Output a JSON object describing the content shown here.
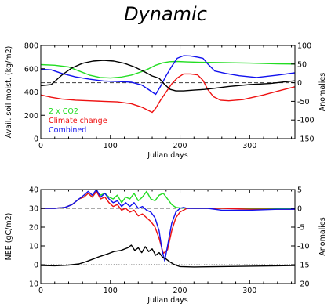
{
  "title": "Dynamic",
  "chart_data": [
    {
      "type": "line",
      "xlabel": "Julian days",
      "ylabel": "Avail. soil moist. (kg/m2)",
      "ylabel_right": "Anomalies",
      "xlim": [
        0,
        365
      ],
      "ylim": [
        0,
        800
      ],
      "ylim_right": [
        -150,
        100
      ],
      "xticks": [
        0,
        100,
        200,
        300
      ],
      "yticks": [
        0,
        200,
        400,
        600,
        800
      ],
      "yticks_right": [
        -150,
        -100,
        -50,
        0,
        50,
        100
      ],
      "reference_line": {
        "axis": "right",
        "value": 0,
        "style": "dashed",
        "color": "#555555"
      },
      "legend": [
        {
          "label": "2 x CO2",
          "color": "#22dd22"
        },
        {
          "label": "Climate change",
          "color": "#ee1111"
        },
        {
          "label": "Combined",
          "color": "#1111ee"
        }
      ],
      "series": [
        {
          "name": "2 x CO2",
          "axis": "left",
          "color": "#22dd22",
          "x": [
            0,
            20,
            40,
            55,
            70,
            85,
            100,
            115,
            130,
            145,
            155,
            165,
            175,
            185,
            195,
            210,
            230,
            260,
            300,
            340,
            365
          ],
          "y": [
            635,
            630,
            615,
            580,
            545,
            525,
            520,
            528,
            545,
            575,
            600,
            630,
            650,
            660,
            662,
            658,
            655,
            652,
            648,
            642,
            640
          ]
        },
        {
          "name": "Climate change",
          "axis": "left",
          "color": "#ee1111",
          "x": [
            0,
            15,
            30,
            50,
            70,
            90,
            110,
            130,
            145,
            155,
            160,
            165,
            172,
            180,
            188,
            196,
            205,
            215,
            225,
            233,
            240,
            248,
            258,
            270,
            290,
            320,
            345,
            365
          ],
          "y": [
            375,
            355,
            340,
            330,
            325,
            320,
            315,
            300,
            270,
            240,
            225,
            260,
            330,
            400,
            470,
            520,
            555,
            555,
            548,
            500,
            420,
            360,
            330,
            325,
            335,
            375,
            415,
            445
          ]
        },
        {
          "name": "Combined",
          "axis": "left",
          "color": "#1111ee",
          "x": [
            0,
            15,
            30,
            50,
            70,
            90,
            110,
            130,
            145,
            155,
            165,
            172,
            180,
            188,
            196,
            205,
            215,
            225,
            233,
            240,
            250,
            265,
            285,
            310,
            340,
            365
          ],
          "y": [
            595,
            590,
            560,
            530,
            510,
            495,
            490,
            485,
            460,
            420,
            380,
            450,
            540,
            620,
            690,
            712,
            710,
            700,
            690,
            640,
            580,
            560,
            540,
            525,
            545,
            565
          ]
        },
        {
          "name": "",
          "axis": "right",
          "color": "#000000",
          "x": [
            0,
            15,
            30,
            45,
            60,
            75,
            90,
            105,
            120,
            135,
            150,
            160,
            170,
            178,
            186,
            194,
            205,
            220,
            235,
            250,
            270,
            300,
            330,
            350,
            365
          ],
          "y": [
            -8,
            -5,
            20,
            40,
            52,
            58,
            60,
            58,
            52,
            42,
            28,
            18,
            12,
            -5,
            -18,
            -22,
            -22,
            -20,
            -18,
            -15,
            -10,
            -5,
            -2,
            2,
            5
          ]
        }
      ]
    },
    {
      "type": "line",
      "xlabel": "Julian days",
      "ylabel": "NEE (gC/m2)",
      "ylabel_right": "Anomalies",
      "xlim": [
        0,
        365
      ],
      "ylim": [
        -10,
        40
      ],
      "ylim_right": [
        -20,
        5
      ],
      "xticks": [
        0,
        100,
        200,
        300
      ],
      "yticks": [
        -10,
        0,
        10,
        20,
        30,
        40
      ],
      "yticks_right": [
        -20,
        -15,
        -10,
        -5,
        0,
        5
      ],
      "reference_lines": [
        {
          "axis": "left",
          "value": 30,
          "style": "dashed",
          "color": "#555555"
        },
        {
          "axis": "left",
          "value": 0,
          "style": "dotted",
          "color": "#555555"
        }
      ],
      "series": [
        {
          "name": "2 x CO2",
          "axis": "left",
          "color": "#22dd22",
          "x": [
            0,
            20,
            35,
            45,
            55,
            62,
            68,
            74,
            80,
            86,
            92,
            98,
            104,
            110,
            116,
            122,
            128,
            134,
            140,
            146,
            152,
            158,
            164,
            170,
            176,
            182,
            188,
            194,
            200,
            220,
            260,
            300,
            340,
            365
          ],
          "y": [
            30,
            30,
            30.5,
            32,
            35,
            36,
            38,
            36,
            39,
            37,
            38,
            36,
            35,
            37,
            33,
            36,
            35,
            38,
            34,
            36,
            39,
            35,
            34,
            37,
            38,
            35,
            32,
            30.5,
            30.2,
            30,
            30,
            30,
            30,
            30
          ]
        },
        {
          "name": "Climate change",
          "axis": "left",
          "color": "#ee1111",
          "x": [
            0,
            20,
            35,
            45,
            55,
            62,
            68,
            74,
            80,
            86,
            92,
            98,
            104,
            110,
            116,
            122,
            128,
            134,
            140,
            146,
            152,
            158,
            164,
            170,
            176,
            182,
            188,
            194,
            200,
            205,
            210,
            220,
            240,
            260,
            300,
            340,
            365
          ],
          "y": [
            30,
            30,
            30.5,
            32,
            35,
            36,
            38,
            36,
            39,
            35,
            36,
            33,
            31,
            32,
            29,
            30,
            28,
            29,
            26,
            27,
            25,
            23,
            20,
            14,
            6,
            8,
            18,
            25,
            28,
            29,
            30,
            30,
            30,
            30,
            29.5,
            29.5,
            29.5
          ]
        },
        {
          "name": "Combined",
          "axis": "left",
          "color": "#1111ee",
          "x": [
            0,
            20,
            35,
            45,
            55,
            62,
            68,
            74,
            80,
            86,
            92,
            98,
            104,
            110,
            116,
            122,
            128,
            134,
            140,
            146,
            152,
            158,
            164,
            170,
            174,
            178,
            182,
            188,
            194,
            200,
            205,
            210,
            220,
            240,
            260,
            300,
            340,
            365
          ],
          "y": [
            30,
            30,
            30.5,
            32,
            35,
            37,
            39,
            37,
            40,
            36,
            38,
            35,
            33,
            34,
            31,
            33,
            31,
            33,
            30,
            31,
            29,
            28,
            25,
            18,
            8,
            2,
            10,
            22,
            28,
            30,
            30.5,
            30,
            30,
            30,
            29,
            29,
            29.5,
            29.5
          ]
        },
        {
          "name": "",
          "axis": "right",
          "color": "#000000",
          "x": [
            0,
            20,
            40,
            55,
            65,
            75,
            85,
            95,
            105,
            115,
            125,
            130,
            135,
            140,
            145,
            150,
            155,
            160,
            165,
            170,
            175,
            180,
            185,
            190,
            195,
            200,
            220,
            260,
            300,
            340,
            365
          ],
          "y": [
            -15.2,
            -15.3,
            -15.1,
            -14.8,
            -14.2,
            -13.5,
            -12.8,
            -12.2,
            -11.5,
            -11.2,
            -10.5,
            -9.8,
            -11.2,
            -10.5,
            -11.8,
            -10.2,
            -11.5,
            -10.8,
            -12.5,
            -11.8,
            -13,
            -13.5,
            -14.2,
            -14.8,
            -15.2,
            -15.5,
            -15.6,
            -15.5,
            -15.4,
            -15.3,
            -15.2
          ]
        }
      ]
    }
  ]
}
